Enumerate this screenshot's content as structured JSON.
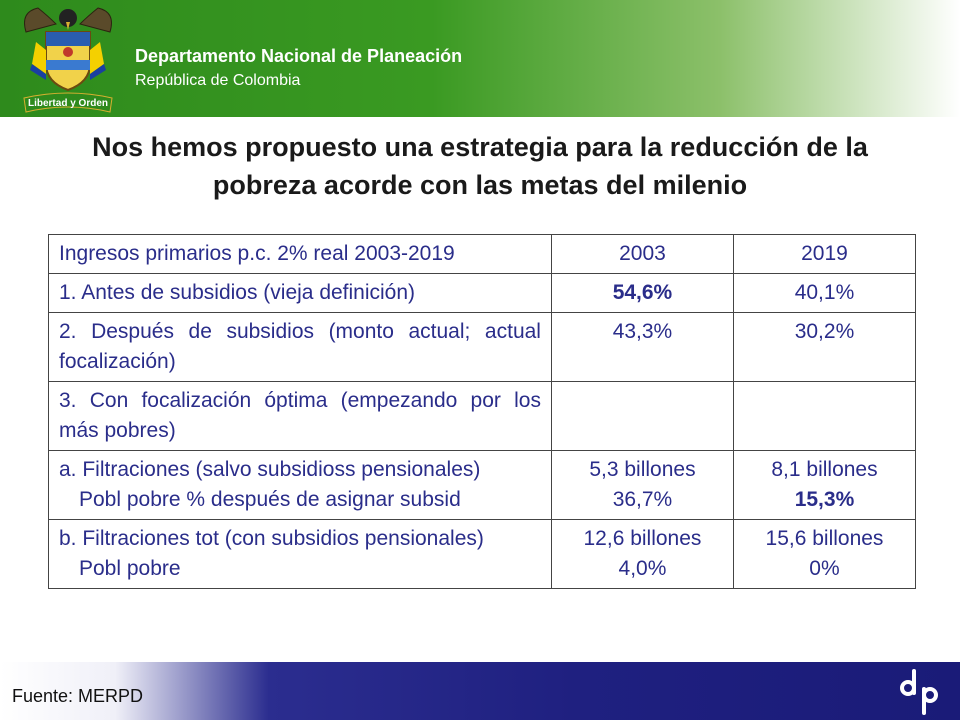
{
  "header": {
    "org_name": "Departamento Nacional de Planeación",
    "country": "República de Colombia",
    "crest_motto": "Libertad y Orden",
    "colors": {
      "green": "#2e8a1c",
      "blue": "#1f2080",
      "table_text": "#2a2d8a"
    }
  },
  "title": {
    "line1": "Nos hemos propuesto una estrategia para la reducción de la",
    "line2": "pobreza acorde con las metas del milenio"
  },
  "table": {
    "header": {
      "label": "Ingresos primarios p.c. 2% real 2003-2019",
      "col1": "2003",
      "col2": "2019"
    },
    "row1": {
      "label": "1. Antes de subsidios (vieja definición)",
      "v2003": "54,6%",
      "v2019": "40,1%"
    },
    "row2": {
      "label": "2. Después de subsidios (monto actual; actual focalización)",
      "v2003": "43,3%",
      "v2019": "30,2%"
    },
    "row3": {
      "label": "3. Con focalización óptima (empezando por los más pobres)",
      "v2003": "",
      "v2019": ""
    },
    "row4": {
      "label_a": "a. Filtraciones (salvo subsidioss pensionales)",
      "label_b": "Pobl pobre % después de asignar subsid",
      "v2003_a": "5,3 billones",
      "v2003_b": "36,7%",
      "v2019_a": "8,1 billones",
      "v2019_b": "15,3%"
    },
    "row5": {
      "label_a": "b. Filtraciones tot (con subsidios pensionales)",
      "label_b": "Pobl pobre",
      "v2003_a": "12,6 billones",
      "v2003_b": "4,0%",
      "v2019_a": "15,6 billones",
      "v2019_b": "0%"
    }
  },
  "footer": {
    "source": "Fuente: MERPD",
    "logo_icon": "dnp-logo-icon"
  }
}
